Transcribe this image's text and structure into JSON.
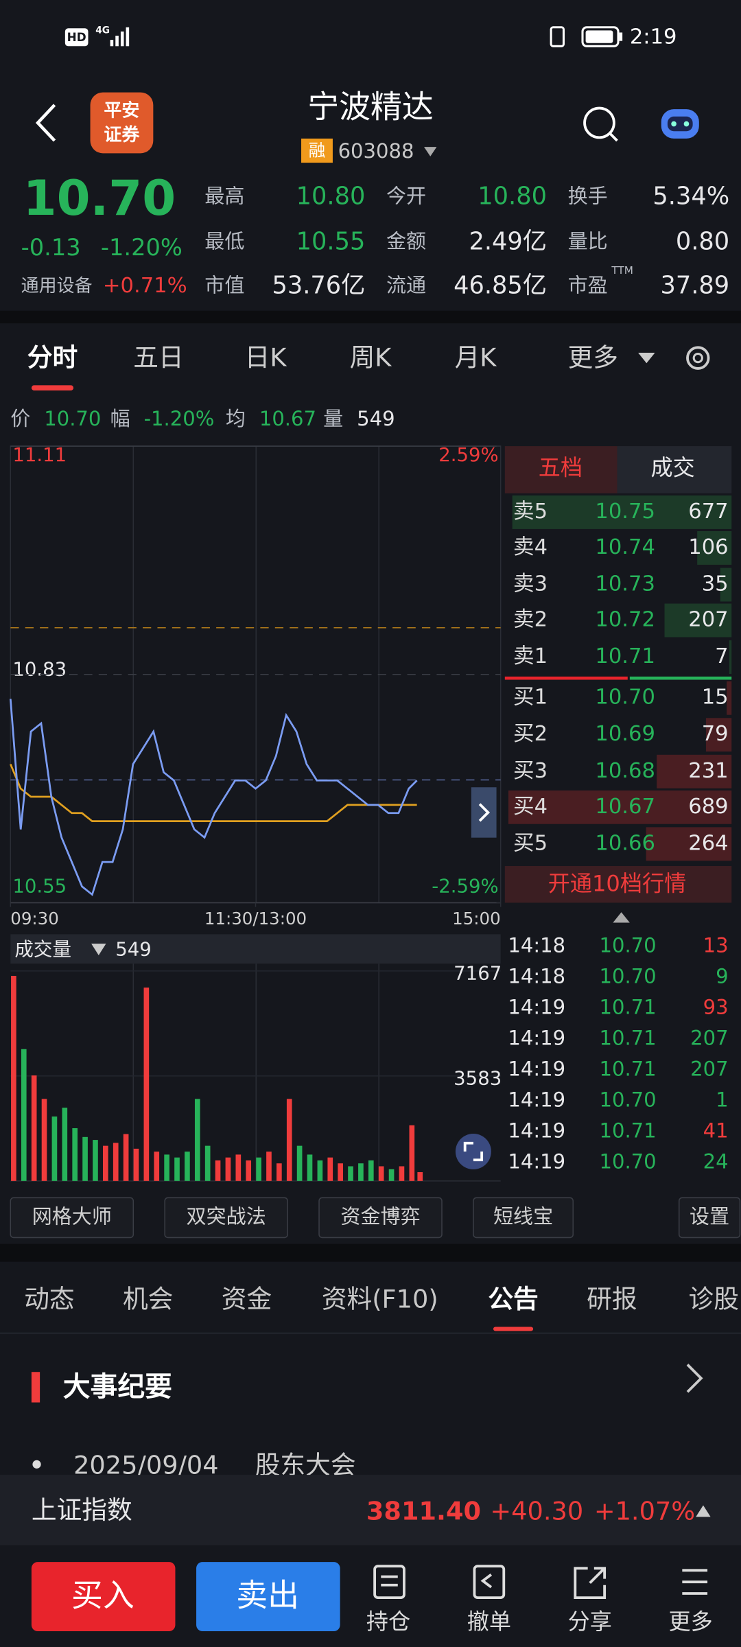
{
  "status_bar": {
    "hd": "HD",
    "network": "4G",
    "time": "2:19"
  },
  "header": {
    "logo": [
      "平安",
      "证券"
    ],
    "title": "宁波精达",
    "badge": "融",
    "code": "603088"
  },
  "quote": {
    "price": "10.70",
    "change": "-0.13",
    "change_pct": "-1.20%",
    "industry": "通用设备",
    "industry_pct": "+0.71%",
    "stats": [
      {
        "label": "最高",
        "value": "10.80",
        "color": "#27b35a"
      },
      {
        "label": "今开",
        "value": "10.80",
        "color": "#27b35a"
      },
      {
        "label": "换手",
        "value": "5.34%",
        "color": "#e8e8ea"
      },
      {
        "label": "最低",
        "value": "10.55",
        "color": "#27b35a"
      },
      {
        "label": "金额",
        "value": "2.49亿",
        "color": "#e8e8ea"
      },
      {
        "label": "量比",
        "value": "0.80",
        "color": "#e8e8ea"
      },
      {
        "label": "市值",
        "value": "53.76亿",
        "color": "#e8e8ea"
      },
      {
        "label": "流通",
        "value": "46.85亿",
        "color": "#e8e8ea"
      },
      {
        "label": "市盈",
        "value": "37.89",
        "color": "#e8e8ea",
        "note": "TTM"
      }
    ]
  },
  "period_tabs": [
    "分时",
    "五日",
    "日K",
    "周K",
    "月K",
    "更多"
  ],
  "info": [
    {
      "label": "价",
      "value": "10.70",
      "color": "#27b35a"
    },
    {
      "label": "幅",
      "value": "-1.20%",
      "color": "#27b35a"
    },
    {
      "label": "均",
      "value": "10.67",
      "color": "#27b35a"
    },
    {
      "label": "量",
      "value": "549",
      "color": "#e8e8ea"
    }
  ],
  "chart_data": [
    {
      "type": "line",
      "x": [
        0,
        5,
        10,
        15,
        20,
        25,
        30,
        35,
        40,
        45,
        50,
        55,
        60,
        65,
        70,
        75,
        80,
        85,
        90,
        95,
        100,
        105,
        110,
        115,
        120,
        125,
        130,
        135,
        140,
        145,
        150,
        155,
        160,
        165,
        170,
        175,
        180,
        185,
        190,
        195,
        199
      ],
      "xlim": [
        0,
        240
      ],
      "xticks": [
        {
          "value": 0,
          "label": "09:30"
        },
        {
          "value": 120,
          "label": "11:30/13:00"
        },
        {
          "value": 240,
          "label": "15:00"
        }
      ],
      "ylim": [
        10.55,
        11.11
      ],
      "yticks": [
        10.55,
        10.83,
        11.11
      ],
      "y2lim": [
        -2.59,
        2.59
      ],
      "y2ticks": [
        {
          "value": -2.59,
          "label": "-2.59%"
        },
        {
          "value": 2.59,
          "label": "2.59%"
        }
      ],
      "up_color": "#f03c3c",
      "down_color": "#27b35a",
      "series": [
        {
          "color": "#7b9cf2",
          "values": [
            10.8,
            10.64,
            10.76,
            10.77,
            10.68,
            10.63,
            10.6,
            10.57,
            10.56,
            10.6,
            10.6,
            10.64,
            10.72,
            10.74,
            10.76,
            10.71,
            10.7,
            10.67,
            10.64,
            10.63,
            10.66,
            10.68,
            10.7,
            10.7,
            10.69,
            10.7,
            10.73,
            10.78,
            10.76,
            10.72,
            10.7,
            10.7,
            10.7,
            10.69,
            10.68,
            10.67,
            10.67,
            10.66,
            10.66,
            10.69,
            10.7
          ]
        },
        {
          "color": "#e0a020",
          "values": [
            10.72,
            10.69,
            10.68,
            10.68,
            10.68,
            10.67,
            10.66,
            10.66,
            10.65,
            10.65,
            10.65,
            10.65,
            10.65,
            10.65,
            10.65,
            10.65,
            10.65,
            10.65,
            10.65,
            10.65,
            10.65,
            10.65,
            10.65,
            10.65,
            10.65,
            10.65,
            10.65,
            10.65,
            10.65,
            10.65,
            10.65,
            10.65,
            10.66,
            10.67,
            10.67,
            10.67,
            10.67,
            10.67,
            10.67,
            10.67,
            10.67
          ]
        }
      ]
    },
    {
      "type": "bar",
      "title": "成交量",
      "latest": "549",
      "ylim": [
        0,
        7167
      ],
      "yticks": [
        3583,
        7167
      ],
      "up_color": "#f03c3c",
      "down_color": "#27b35a",
      "values": [
        7000,
        4500,
        3600,
        2800,
        2200,
        2500,
        1800,
        1500,
        1400,
        1200,
        1300,
        1600,
        1100,
        6600,
        1000,
        900,
        800,
        1000,
        2800,
        1200,
        700,
        800,
        900,
        700,
        800,
        1000,
        600,
        2800,
        1200,
        900,
        700,
        800,
        600,
        500,
        600,
        700,
        500,
        400,
        500,
        1900,
        300
      ]
    }
  ],
  "order_book": {
    "tabs": [
      "五档",
      "成交"
    ],
    "asks": [
      {
        "label": "卖5",
        "price": "10.75",
        "volume": 677
      },
      {
        "label": "卖4",
        "price": "10.74",
        "volume": 106
      },
      {
        "label": "卖3",
        "price": "10.73",
        "volume": 35
      },
      {
        "label": "卖2",
        "price": "10.72",
        "volume": 207
      },
      {
        "label": "卖1",
        "price": "10.71",
        "volume": 7
      }
    ],
    "bids": [
      {
        "label": "买1",
        "price": "10.70",
        "volume": 15
      },
      {
        "label": "买2",
        "price": "10.69",
        "volume": 79
      },
      {
        "label": "买3",
        "price": "10.68",
        "volume": 231
      },
      {
        "label": "买4",
        "price": "10.67",
        "volume": 689
      },
      {
        "label": "买5",
        "price": "10.66",
        "volume": 264
      }
    ],
    "upgrade": "开通10档行情"
  },
  "trades": [
    {
      "time": "14:18",
      "price": "10.70",
      "volume": 13,
      "color": "#f03c3c"
    },
    {
      "time": "14:18",
      "price": "10.70",
      "volume": 9,
      "color": "#27b35a"
    },
    {
      "time": "14:19",
      "price": "10.71",
      "volume": 93,
      "color": "#f03c3c"
    },
    {
      "time": "14:19",
      "price": "10.71",
      "volume": 207,
      "color": "#27b35a"
    },
    {
      "time": "14:19",
      "price": "10.71",
      "volume": 207,
      "color": "#27b35a"
    },
    {
      "time": "14:19",
      "price": "10.70",
      "volume": 1,
      "color": "#27b35a"
    },
    {
      "time": "14:19",
      "price": "10.71",
      "volume": 41,
      "color": "#f03c3c"
    },
    {
      "time": "14:19",
      "price": "10.70",
      "volume": 24,
      "color": "#27b35a"
    }
  ],
  "tools": [
    "网格大师",
    "双突战法",
    "资金博弈",
    "短线宝",
    "设置"
  ],
  "info_tabs": [
    "动态",
    "机会",
    "资金",
    "资料(F10)",
    "公告",
    "研报",
    "诊股"
  ],
  "section": {
    "title": "大事纪要",
    "items": [
      {
        "date": "2025/09/04",
        "event": "股东大会"
      }
    ]
  },
  "index_bar": {
    "name": "上证指数",
    "value": "3811.40",
    "change": "+40.30",
    "pct": "+1.07%"
  },
  "actions": {
    "buy": "买入",
    "sell": "卖出",
    "items": [
      "持仓",
      "撤单",
      "分享",
      "更多"
    ]
  }
}
